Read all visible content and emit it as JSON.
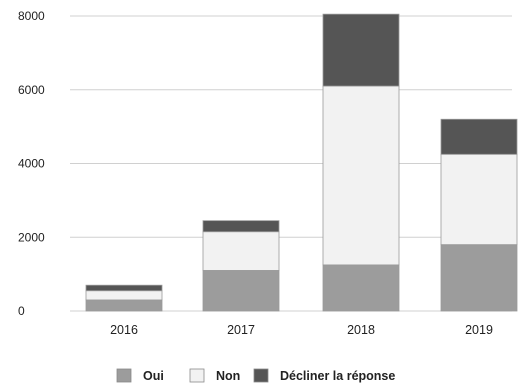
{
  "chart_data": {
    "type": "bar",
    "stacked": true,
    "title": "",
    "xlabel": "",
    "ylabel": "",
    "categories": [
      "2016",
      "2017",
      "2018",
      "2019"
    ],
    "series": [
      {
        "name": "Oui",
        "color": "#9c9c9c",
        "values": [
          300,
          1100,
          1250,
          1800
        ]
      },
      {
        "name": "Non",
        "color": "#f2f2f2",
        "values": [
          250,
          1050,
          4850,
          2450
        ]
      },
      {
        "name": "Décliner la réponse",
        "color": "#555555",
        "values": [
          150,
          300,
          1950,
          950
        ]
      }
    ],
    "ylim": [
      0,
      8000
    ],
    "yticks": [
      0,
      2000,
      4000,
      6000,
      8000
    ],
    "grid": true,
    "legend_position": "bottom"
  }
}
